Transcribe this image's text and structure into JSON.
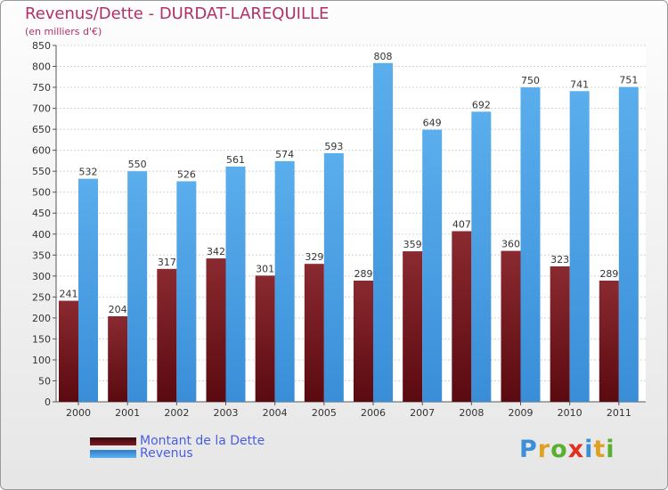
{
  "header": {
    "title": "Revenus/Dette - DURDAT-LAREQUILLE",
    "subtitle": "(en milliers d'€)"
  },
  "chart_data": {
    "type": "bar",
    "title": "Revenus/Dette - DURDAT-LAREQUILLE",
    "ylabel": "(en milliers d'€)",
    "xlabel": "",
    "categories": [
      "2000",
      "2001",
      "2002",
      "2003",
      "2004",
      "2005",
      "2006",
      "2007",
      "2008",
      "2009",
      "2010",
      "2011"
    ],
    "series": [
      {
        "name": "Montant de la Dette",
        "color": "#7a1c22",
        "values": [
          241,
          204,
          317,
          342,
          301,
          329,
          289,
          359,
          407,
          360,
          323,
          289
        ]
      },
      {
        "name": "Revenus",
        "color": "#4aa0e6",
        "values": [
          532,
          550,
          526,
          561,
          574,
          593,
          808,
          649,
          692,
          750,
          741,
          751
        ]
      }
    ],
    "ylim": [
      0,
      850
    ],
    "ytick_step": 50,
    "grid": true,
    "legend_position": "bottom-left"
  },
  "legend": {
    "items": [
      {
        "label": "Montant de la Dette",
        "color": "#7a1c22"
      },
      {
        "label": "Revenus",
        "color": "#4aa0e6"
      }
    ]
  },
  "brand": {
    "logo_letters": [
      "P",
      "r",
      "o",
      "x",
      "i",
      "t",
      "i"
    ],
    "logo_colors": [
      "#3b8fd8",
      "#e0a020",
      "#58b030",
      "#e03020",
      "#3b8fd8",
      "#e0a020",
      "#58b030"
    ]
  }
}
